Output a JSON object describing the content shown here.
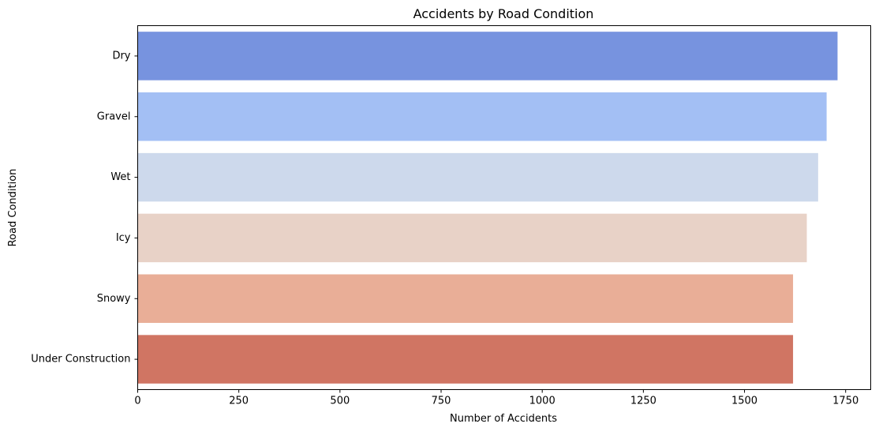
{
  "chart_data": {
    "type": "bar",
    "orientation": "horizontal",
    "title": "Accidents by Road Condition",
    "xlabel": "Number of Accidents",
    "ylabel": "Road Condition",
    "categories": [
      "Dry",
      "Gravel",
      "Wet",
      "Icy",
      "Snowy",
      "Under Construction"
    ],
    "values": [
      1730,
      1703,
      1682,
      1654,
      1620,
      1620
    ],
    "colors": [
      "#7793df",
      "#a3bff4",
      "#cdd9ec",
      "#e8d2c7",
      "#e9ae97",
      "#d07563"
    ],
    "xlim": [
      0,
      1812
    ],
    "xticks": [
      0,
      250,
      500,
      750,
      1000,
      1250,
      1500,
      1750
    ],
    "grid": false,
    "legend": "none"
  }
}
